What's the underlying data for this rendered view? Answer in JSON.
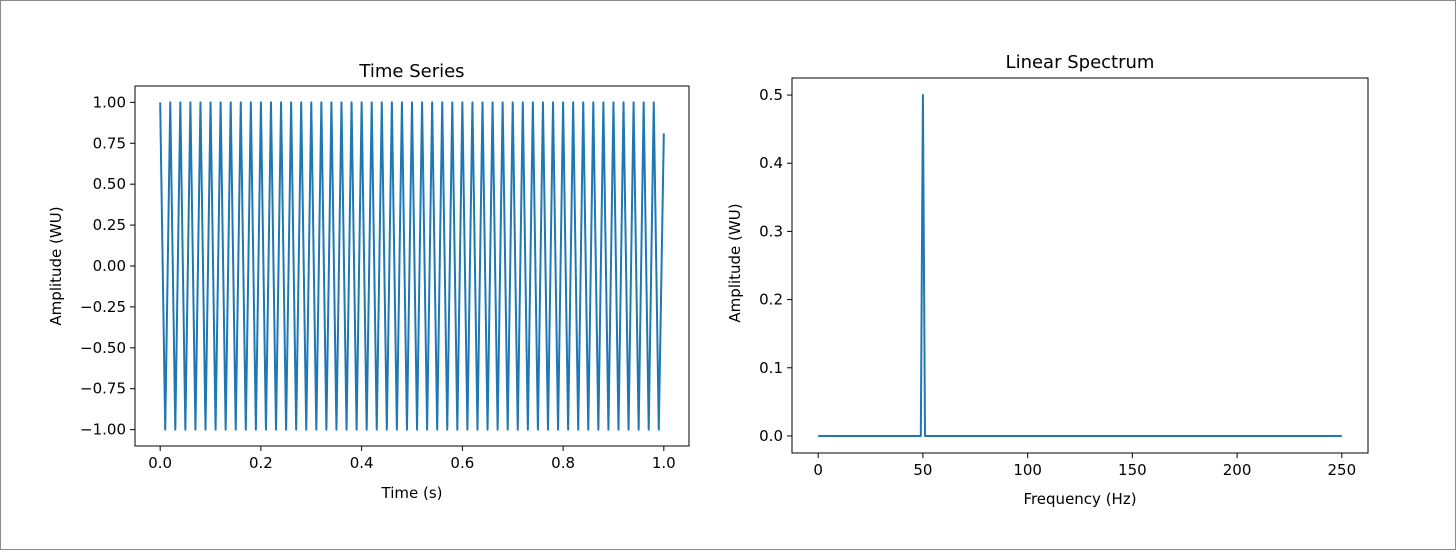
{
  "chart_data": [
    {
      "type": "line",
      "title": "Time Series",
      "xlabel": "Time (s)",
      "ylabel": "Amplitude (WU)",
      "xlim": [
        -0.05,
        1.05
      ],
      "ylim": [
        -1.1,
        1.1
      ],
      "xticks": [
        0.0,
        0.2,
        0.4,
        0.6,
        0.8,
        1.0
      ],
      "xtick_labels": [
        "0.0",
        "0.2",
        "0.4",
        "0.6",
        "0.8",
        "1.0"
      ],
      "yticks": [
        1.0,
        0.75,
        0.5,
        0.25,
        0.0,
        -0.25,
        -0.5,
        -0.75,
        -1.0
      ],
      "ytick_labels": [
        "1.00",
        "0.75",
        "0.50",
        "0.25",
        "0.00",
        "−0.25",
        "−0.50",
        "−0.75",
        "−1.00"
      ],
      "grid": false,
      "color": "#1f77b4",
      "series": [
        {
          "signal": "cosine",
          "frequency_hz": 50,
          "sample_rate_hz": 100,
          "t_start": 0.0,
          "t_end": 1.0,
          "end_value": 0.81
        }
      ]
    },
    {
      "type": "line",
      "title": "Linear Spectrum",
      "xlabel": "Frequency (Hz)",
      "ylabel": "Amplitude (WU)",
      "xlim": [
        -12.5,
        262.5
      ],
      "ylim": [
        -0.025,
        0.525
      ],
      "xticks": [
        0,
        50,
        100,
        150,
        200,
        250
      ],
      "xtick_labels": [
        "0",
        "50",
        "100",
        "150",
        "200",
        "250"
      ],
      "yticks": [
        0.0,
        0.1,
        0.2,
        0.3,
        0.4,
        0.5
      ],
      "ytick_labels": [
        "0.0",
        "0.1",
        "0.2",
        "0.3",
        "0.4",
        "0.5"
      ],
      "grid": false,
      "color": "#1f77b4",
      "series": [
        {
          "x": [
            0,
            49,
            50,
            51,
            250
          ],
          "y": [
            0.0,
            0.0,
            0.5,
            0.0,
            0.0
          ]
        }
      ]
    }
  ]
}
